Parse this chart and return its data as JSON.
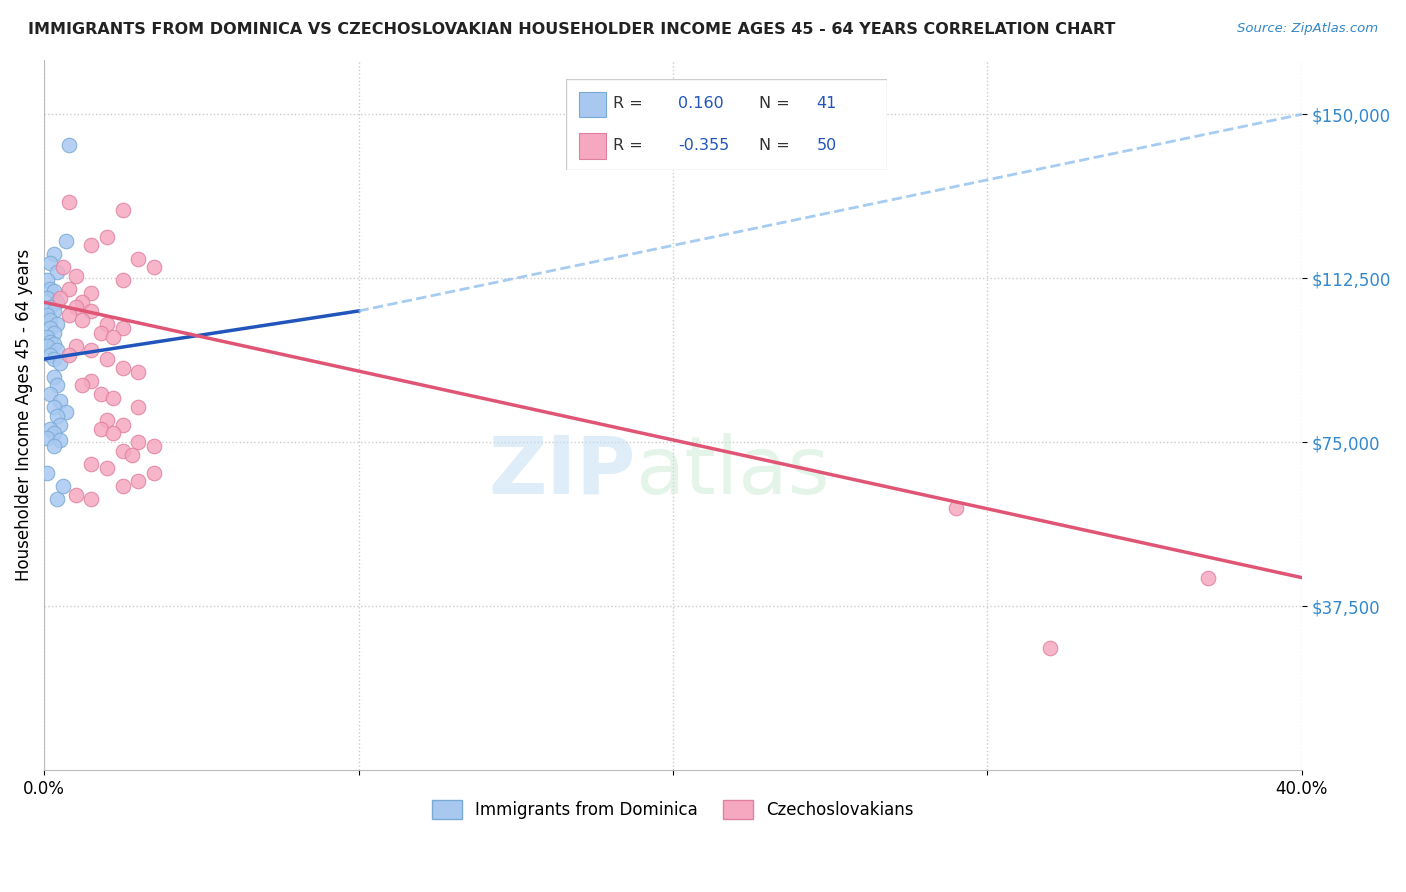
{
  "title": "IMMIGRANTS FROM DOMINICA VS CZECHOSLOVAKIAN HOUSEHOLDER INCOME AGES 45 - 64 YEARS CORRELATION CHART",
  "source": "Source: ZipAtlas.com",
  "ylabel": "Householder Income Ages 45 - 64 years",
  "xlim": [
    0.0,
    0.4
  ],
  "ylim": [
    0,
    162500
  ],
  "yticks": [
    37500,
    75000,
    112500,
    150000
  ],
  "ytick_labels": [
    "$37,500",
    "$75,000",
    "$112,500",
    "$150,000"
  ],
  "xtick_positions": [
    0.0,
    0.1,
    0.2,
    0.3,
    0.4
  ],
  "xtick_labels": [
    "0.0%",
    "",
    "",
    "",
    "40.0%"
  ],
  "dominica_color": "#a8c8f0",
  "dominica_edge": "#7aaad4",
  "czech_color": "#f5a8c0",
  "czech_edge": "#e080a0",
  "line_blue_solid": "#2255bb",
  "line_blue_dashed": "#88bbee",
  "line_pink": "#e05575",
  "scatter_dominica": [
    [
      0.008,
      143000
    ],
    [
      0.007,
      121000
    ],
    [
      0.003,
      118000
    ],
    [
      0.002,
      116000
    ],
    [
      0.004,
      114000
    ],
    [
      0.001,
      112000
    ],
    [
      0.002,
      110000
    ],
    [
      0.003,
      109500
    ],
    [
      0.001,
      108000
    ],
    [
      0.004,
      107000
    ],
    [
      0.002,
      106000
    ],
    [
      0.003,
      105000
    ],
    [
      0.001,
      104000
    ],
    [
      0.002,
      103000
    ],
    [
      0.004,
      102000
    ],
    [
      0.002,
      101000
    ],
    [
      0.003,
      100000
    ],
    [
      0.001,
      99000
    ],
    [
      0.002,
      98000
    ],
    [
      0.003,
      97500
    ],
    [
      0.001,
      97000
    ],
    [
      0.004,
      96000
    ],
    [
      0.002,
      95000
    ],
    [
      0.003,
      94000
    ],
    [
      0.005,
      93000
    ],
    [
      0.003,
      90000
    ],
    [
      0.004,
      88000
    ],
    [
      0.002,
      86000
    ],
    [
      0.005,
      84500
    ],
    [
      0.003,
      83000
    ],
    [
      0.007,
      82000
    ],
    [
      0.004,
      81000
    ],
    [
      0.005,
      79000
    ],
    [
      0.002,
      78000
    ],
    [
      0.003,
      77000
    ],
    [
      0.001,
      76000
    ],
    [
      0.005,
      75500
    ],
    [
      0.003,
      74000
    ],
    [
      0.001,
      68000
    ],
    [
      0.006,
      65000
    ],
    [
      0.004,
      62000
    ]
  ],
  "scatter_czech": [
    [
      0.008,
      130000
    ],
    [
      0.025,
      128000
    ],
    [
      0.02,
      122000
    ],
    [
      0.015,
      120000
    ],
    [
      0.03,
      117000
    ],
    [
      0.035,
      115000
    ],
    [
      0.006,
      115000
    ],
    [
      0.01,
      113000
    ],
    [
      0.025,
      112000
    ],
    [
      0.008,
      110000
    ],
    [
      0.015,
      109000
    ],
    [
      0.005,
      108000
    ],
    [
      0.012,
      107000
    ],
    [
      0.01,
      106000
    ],
    [
      0.015,
      105000
    ],
    [
      0.008,
      104000
    ],
    [
      0.012,
      103000
    ],
    [
      0.02,
      102000
    ],
    [
      0.025,
      101000
    ],
    [
      0.018,
      100000
    ],
    [
      0.022,
      99000
    ],
    [
      0.01,
      97000
    ],
    [
      0.015,
      96000
    ],
    [
      0.008,
      95000
    ],
    [
      0.02,
      94000
    ],
    [
      0.025,
      92000
    ],
    [
      0.03,
      91000
    ],
    [
      0.015,
      89000
    ],
    [
      0.012,
      88000
    ],
    [
      0.018,
      86000
    ],
    [
      0.022,
      85000
    ],
    [
      0.03,
      83000
    ],
    [
      0.02,
      80000
    ],
    [
      0.025,
      79000
    ],
    [
      0.018,
      78000
    ],
    [
      0.022,
      77000
    ],
    [
      0.03,
      75000
    ],
    [
      0.035,
      74000
    ],
    [
      0.025,
      73000
    ],
    [
      0.028,
      72000
    ],
    [
      0.015,
      70000
    ],
    [
      0.02,
      69000
    ],
    [
      0.035,
      68000
    ],
    [
      0.03,
      66000
    ],
    [
      0.025,
      65000
    ],
    [
      0.01,
      63000
    ],
    [
      0.015,
      62000
    ],
    [
      0.29,
      60000
    ],
    [
      0.32,
      28000
    ],
    [
      0.37,
      44000
    ]
  ]
}
